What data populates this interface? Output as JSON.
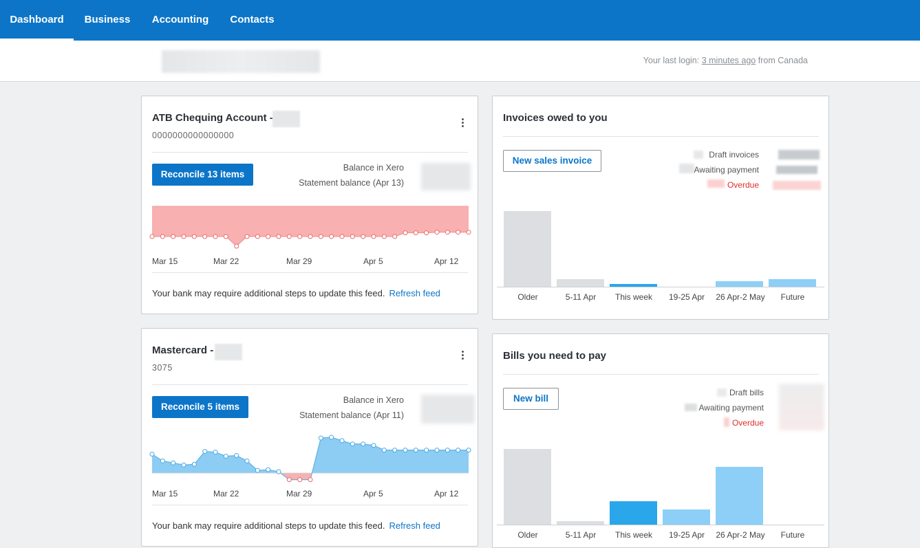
{
  "nav": {
    "tabs": [
      {
        "label": "Dashboard",
        "active": true
      },
      {
        "label": "Business"
      },
      {
        "label": "Accounting"
      },
      {
        "label": "Contacts"
      }
    ]
  },
  "header": {
    "last_login_prefix": "Your last login:",
    "last_login_time": "3 minutes ago",
    "last_login_suffix": "from Canada"
  },
  "colors": {
    "brand": "#0c75c8",
    "overdue": "#e02a2a",
    "negative_area": "#f9b0b0",
    "positive_area": "#8dccf3",
    "bar_grey": "#dcdee1",
    "bar_blue": "#2aa6ea",
    "bar_light_blue": "#8dcff6"
  },
  "accounts": [
    {
      "name": "ATB Chequing Account -",
      "number": "0000000000000000",
      "reconcile_label": "Reconcile 13 items",
      "balance_xero_label": "Balance in Xero",
      "statement_label": "Statement balance (Apr 13)",
      "axis_labels": [
        "Mar 15",
        "Mar 22",
        "Mar 29",
        "Apr 5",
        "Apr 12"
      ],
      "feed_message": "Your bank may require additional steps to update this feed.",
      "refresh_label": "Refresh feed",
      "trend": [
        0,
        0,
        0,
        0,
        0,
        0,
        0,
        0,
        -1,
        0,
        0,
        0,
        0,
        0,
        0,
        0,
        0,
        0,
        0,
        0,
        0,
        0,
        0,
        0,
        0.3,
        0.3,
        0.3,
        0.35,
        0.35,
        0.35,
        0.35
      ],
      "trend_min": -1,
      "trend_max": 3
    },
    {
      "name": "Mastercard -",
      "number": "3075",
      "reconcile_label": "Reconcile 5 items",
      "balance_xero_label": "Balance in Xero",
      "statement_label": "Statement balance (Apr 11)",
      "axis_labels": [
        "Mar 15",
        "Mar 22",
        "Mar 29",
        "Apr 5",
        "Apr 12"
      ],
      "feed_message": "Your bank may require additional steps to update this feed.",
      "refresh_label": "Refresh feed",
      "trend": [
        2.8,
        1.8,
        1.5,
        1.2,
        1.3,
        3.2,
        3.1,
        2.5,
        2.6,
        1.8,
        0.4,
        0.5,
        0.2,
        -1.2,
        -1.2,
        -1.2,
        5.2,
        5.3,
        4.8,
        4.3,
        4.3,
        4.1,
        3.4,
        3.4,
        3.4,
        3.4,
        3.4,
        3.4,
        3.4,
        3.4,
        3.4
      ],
      "trend_min": -1.5,
      "trend_max": 5.5
    }
  ],
  "invoices": {
    "title": "Invoices owed to you",
    "button_label": "New sales invoice",
    "legend": {
      "draft": "Draft invoices",
      "awaiting": "Awaiting payment",
      "overdue": "Overdue"
    },
    "categories": [
      "Older",
      "5-11 Apr",
      "This week",
      "19-25 Apr",
      "26 Apr-2 May",
      "Future"
    ],
    "values": [
      100,
      10,
      4,
      0,
      7,
      10
    ],
    "bar_colors": [
      "#dcdee1",
      "#dcdee1",
      "#2aa6ea",
      "#8dcff6",
      "#8dcff6",
      "#8dcff6"
    ]
  },
  "bills": {
    "title": "Bills you need to pay",
    "button_label": "New bill",
    "legend": {
      "draft": "Draft bills",
      "awaiting": "Awaiting payment",
      "overdue": "Overdue"
    },
    "categories": [
      "Older",
      "5-11 Apr",
      "This week",
      "19-25 Apr",
      "26 Apr-2 May",
      "Future"
    ],
    "values": [
      100,
      5,
      31,
      20,
      76,
      0
    ],
    "bar_colors": [
      "#dcdee1",
      "#dcdee1",
      "#2aa6ea",
      "#8dcff6",
      "#8dcff6",
      "#8dcff6"
    ]
  }
}
